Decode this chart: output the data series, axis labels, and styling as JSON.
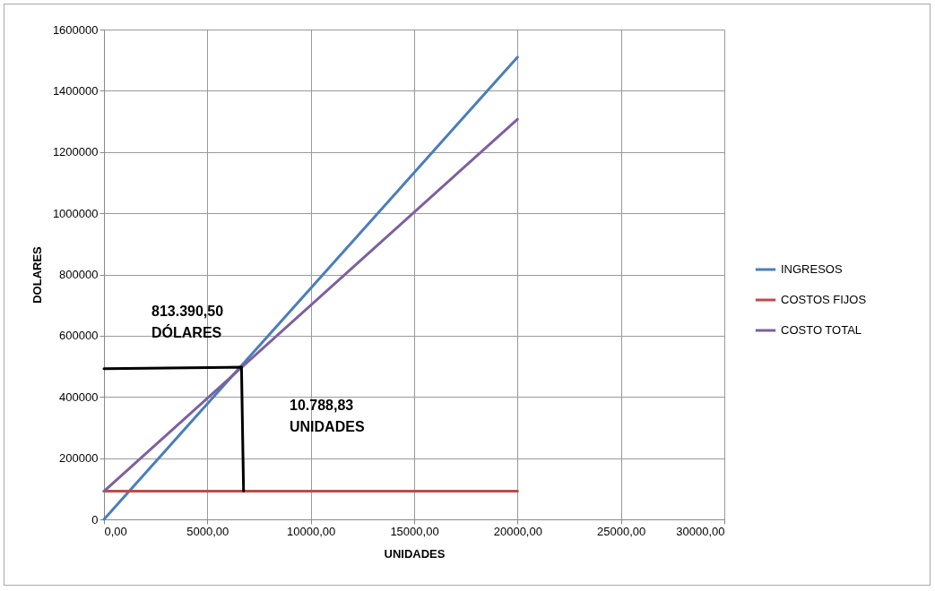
{
  "chart_data": {
    "type": "line",
    "xlabel": "UNIDADES",
    "ylabel": "DOLARES",
    "xlim": [
      0,
      30000
    ],
    "xticks": [
      {
        "value": 0,
        "label": "0,00"
      },
      {
        "value": 5000,
        "label": "5000,00"
      },
      {
        "value": 10000,
        "label": "10000,00"
      },
      {
        "value": 15000,
        "label": "15000,00"
      },
      {
        "value": 20000,
        "label": "20000,00"
      },
      {
        "value": 25000,
        "label": "25000,00"
      },
      {
        "value": 30000,
        "label": "30000,00"
      }
    ],
    "ylim": [
      0,
      1600000
    ],
    "yticks": [
      0,
      200000,
      400000,
      600000,
      800000,
      1000000,
      1200000,
      1400000,
      1600000
    ],
    "grid": true,
    "legend": "right",
    "marker": "none",
    "line_style": "solid",
    "series": [
      {
        "name": "INGRESOS",
        "color": "#4a7ebb",
        "x": [
          0,
          20000
        ],
        "values": [
          0,
          1510000
        ]
      },
      {
        "name": "COSTOS FIJOS",
        "color": "#be4b48",
        "x": [
          0,
          20000
        ],
        "values": [
          92000,
          92000
        ]
      },
      {
        "name": "COSTO TOTAL",
        "color": "#7d60a0",
        "x": [
          0,
          20000
        ],
        "values": [
          92000,
          1307000
        ]
      },
      {
        "color": "#000000",
        "x": [
          0,
          6650,
          6750
        ],
        "values": [
          492000,
          497000,
          92000
        ]
      }
    ],
    "annotations": [
      "813.390,50\nDÓLARES",
      "10.788,83\nUNIDADES"
    ]
  }
}
